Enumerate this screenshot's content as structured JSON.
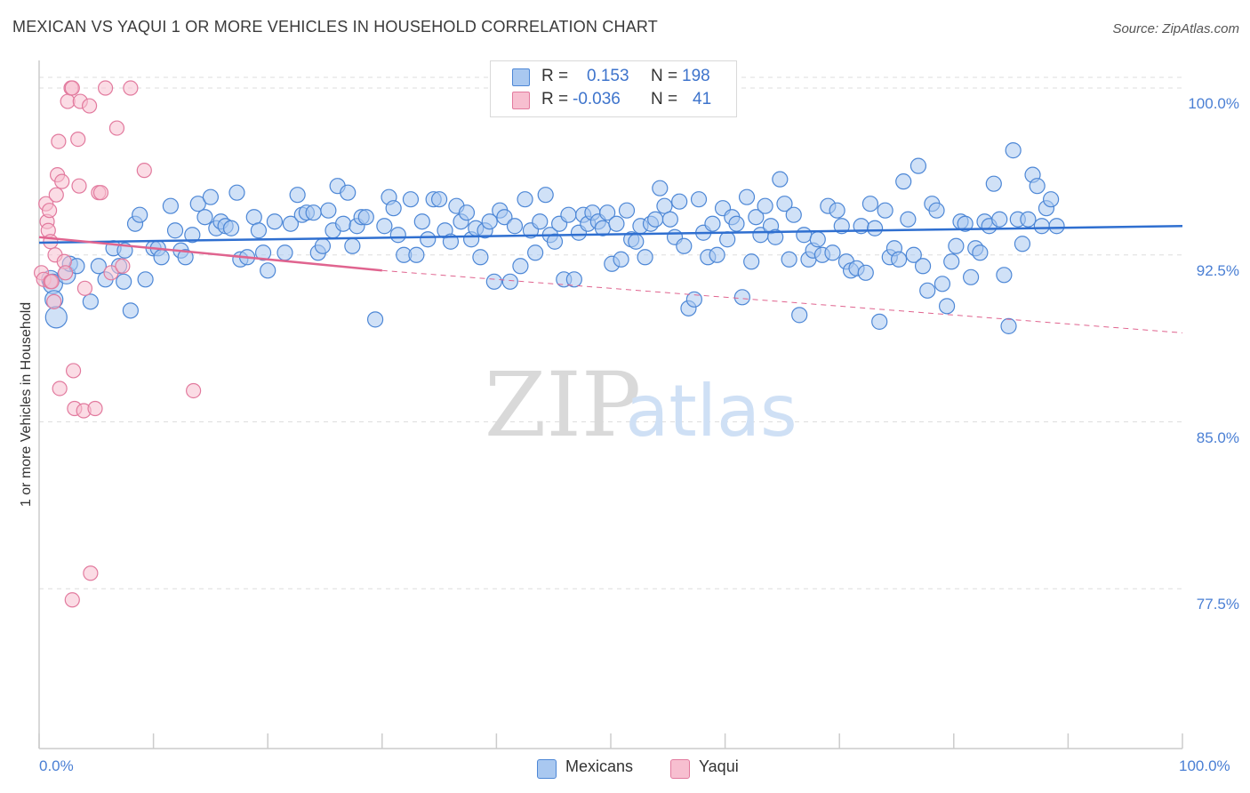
{
  "header": {
    "title": "MEXICAN VS YAQUI 1 OR MORE VEHICLES IN HOUSEHOLD CORRELATION CHART",
    "source": "Source: ZipAtlas.com"
  },
  "legend": {
    "rows": [
      {
        "r_label": "R =",
        "r_value": "0.153",
        "n_label": "N =",
        "n_value": "198"
      },
      {
        "r_label": "R =",
        "r_value": "-0.036",
        "n_label": "N =",
        "n_value": "41"
      }
    ]
  },
  "bottom_legend": {
    "mexicans": "Mexicans",
    "yaqui": "Yaqui"
  },
  "watermark": {
    "zip": "ZIP",
    "atlas": "atlas"
  },
  "colors": {
    "mexicans_fill": "#a9c8f0",
    "mexicans_stroke": "#4d87d6",
    "mexicans_line": "#2f6fd0",
    "yaqui_fill": "#f7bfd0",
    "yaqui_stroke": "#e27a9e",
    "yaqui_line": "#e0648f",
    "grid": "#dedede",
    "tick_text": "#4a7fd4"
  },
  "chart_data": {
    "type": "scatter",
    "title": "MEXICAN VS YAQUI 1 OR MORE VEHICLES IN HOUSEHOLD CORRELATION CHART",
    "xlabel": "",
    "ylabel": "1 or more Vehicles in Household",
    "xlim": [
      0,
      100
    ],
    "ylim": [
      70.0,
      100.8
    ],
    "x_tick_labels": [
      "0.0%",
      "100.0%"
    ],
    "y_ticks": [
      77.5,
      85.0,
      92.5,
      100.0
    ],
    "y_tick_labels": [
      "77.5%",
      "85.0%",
      "92.5%",
      "100.0%"
    ],
    "grid": true,
    "series": [
      {
        "name": "Mexicans",
        "r": 0.153,
        "n": 198,
        "trend": {
          "x": [
            0,
            100
          ],
          "y": [
            93.05,
            93.8
          ]
        },
        "points": [
          [
            1.0,
            91.4
          ],
          [
            1.2,
            91.2
          ],
          [
            1.3,
            90.5
          ],
          [
            1.5,
            89.7
          ],
          [
            2.4,
            91.6
          ],
          [
            2.7,
            92.1
          ],
          [
            3.3,
            92.0
          ],
          [
            4.5,
            90.4
          ],
          [
            5.2,
            92.0
          ],
          [
            5.8,
            91.4
          ],
          [
            6.5,
            92.8
          ],
          [
            7.0,
            92.0
          ],
          [
            7.4,
            91.3
          ],
          [
            7.5,
            92.7
          ],
          [
            8.0,
            90.0
          ],
          [
            8.4,
            93.9
          ],
          [
            8.8,
            94.3
          ],
          [
            9.3,
            91.4
          ],
          [
            10.0,
            92.8
          ],
          [
            10.4,
            92.8
          ],
          [
            10.7,
            92.4
          ],
          [
            11.5,
            94.7
          ],
          [
            11.9,
            93.6
          ],
          [
            12.4,
            92.7
          ],
          [
            12.8,
            92.4
          ],
          [
            13.4,
            93.4
          ],
          [
            13.9,
            94.8
          ],
          [
            14.5,
            94.2
          ],
          [
            15.0,
            95.1
          ],
          [
            15.5,
            93.7
          ],
          [
            15.9,
            94.0
          ],
          [
            16.3,
            93.8
          ],
          [
            16.8,
            93.7
          ],
          [
            17.3,
            95.3
          ],
          [
            17.6,
            92.3
          ],
          [
            18.2,
            92.4
          ],
          [
            18.8,
            94.2
          ],
          [
            19.2,
            93.6
          ],
          [
            19.6,
            92.6
          ],
          [
            20.0,
            91.8
          ],
          [
            20.6,
            94.0
          ],
          [
            21.5,
            92.6
          ],
          [
            22.0,
            93.9
          ],
          [
            22.6,
            95.2
          ],
          [
            23.0,
            94.3
          ],
          [
            23.4,
            94.4
          ],
          [
            24.0,
            94.4
          ],
          [
            24.4,
            92.6
          ],
          [
            24.8,
            92.9
          ],
          [
            25.3,
            94.5
          ],
          [
            25.7,
            93.6
          ],
          [
            26.1,
            95.6
          ],
          [
            26.6,
            93.9
          ],
          [
            27.0,
            95.3
          ],
          [
            27.4,
            92.9
          ],
          [
            27.8,
            93.8
          ],
          [
            28.2,
            94.2
          ],
          [
            28.6,
            94.2
          ],
          [
            29.4,
            89.6
          ],
          [
            30.2,
            93.8
          ],
          [
            30.6,
            95.1
          ],
          [
            31.0,
            94.6
          ],
          [
            31.4,
            93.4
          ],
          [
            31.9,
            92.5
          ],
          [
            32.5,
            95.0
          ],
          [
            33.0,
            92.5
          ],
          [
            33.5,
            94.0
          ],
          [
            34.0,
            93.2
          ],
          [
            34.5,
            95.0
          ],
          [
            35.0,
            95.0
          ],
          [
            35.5,
            93.6
          ],
          [
            36.0,
            93.1
          ],
          [
            36.5,
            94.7
          ],
          [
            36.9,
            94.0
          ],
          [
            37.4,
            94.4
          ],
          [
            37.8,
            93.2
          ],
          [
            38.2,
            93.7
          ],
          [
            38.6,
            92.4
          ],
          [
            39.0,
            93.6
          ],
          [
            39.4,
            94.0
          ],
          [
            39.8,
            91.3
          ],
          [
            40.3,
            94.5
          ],
          [
            40.7,
            94.2
          ],
          [
            41.2,
            91.3
          ],
          [
            41.6,
            93.8
          ],
          [
            42.1,
            92.0
          ],
          [
            42.5,
            95.0
          ],
          [
            43.0,
            93.6
          ],
          [
            43.4,
            92.6
          ],
          [
            43.8,
            94.0
          ],
          [
            44.3,
            95.2
          ],
          [
            44.7,
            93.4
          ],
          [
            45.1,
            93.1
          ],
          [
            45.5,
            93.9
          ],
          [
            45.9,
            91.4
          ],
          [
            46.3,
            94.3
          ],
          [
            46.8,
            91.4
          ],
          [
            47.2,
            93.5
          ],
          [
            47.6,
            94.3
          ],
          [
            48.0,
            93.9
          ],
          [
            48.4,
            94.4
          ],
          [
            48.9,
            94.0
          ],
          [
            49.3,
            93.7
          ],
          [
            49.7,
            94.4
          ],
          [
            50.1,
            92.1
          ],
          [
            50.5,
            93.9
          ],
          [
            50.9,
            92.3
          ],
          [
            51.4,
            94.5
          ],
          [
            51.8,
            93.2
          ],
          [
            52.2,
            93.1
          ],
          [
            52.6,
            93.8
          ],
          [
            53.0,
            92.4
          ],
          [
            53.5,
            93.9
          ],
          [
            53.9,
            94.1
          ],
          [
            54.3,
            95.5
          ],
          [
            54.7,
            94.7
          ],
          [
            55.2,
            94.1
          ],
          [
            55.6,
            93.3
          ],
          [
            56.0,
            94.9
          ],
          [
            56.4,
            92.9
          ],
          [
            56.8,
            90.1
          ],
          [
            57.3,
            90.5
          ],
          [
            57.7,
            95.0
          ],
          [
            58.1,
            93.5
          ],
          [
            58.5,
            92.4
          ],
          [
            58.9,
            93.9
          ],
          [
            59.3,
            92.5
          ],
          [
            59.8,
            94.6
          ],
          [
            60.2,
            93.2
          ],
          [
            60.6,
            94.2
          ],
          [
            61.0,
            93.9
          ],
          [
            61.5,
            90.6
          ],
          [
            61.9,
            95.1
          ],
          [
            62.3,
            92.2
          ],
          [
            62.7,
            94.2
          ],
          [
            63.1,
            93.4
          ],
          [
            63.5,
            94.7
          ],
          [
            64.0,
            93.8
          ],
          [
            64.4,
            93.3
          ],
          [
            64.8,
            95.9
          ],
          [
            65.2,
            94.8
          ],
          [
            65.6,
            92.3
          ],
          [
            66.0,
            94.3
          ],
          [
            66.5,
            89.8
          ],
          [
            66.9,
            93.4
          ],
          [
            67.3,
            92.3
          ],
          [
            67.7,
            92.7
          ],
          [
            68.1,
            93.2
          ],
          [
            68.5,
            92.5
          ],
          [
            69.0,
            94.7
          ],
          [
            69.4,
            92.6
          ],
          [
            69.8,
            94.5
          ],
          [
            70.2,
            93.8
          ],
          [
            70.6,
            92.2
          ],
          [
            71.0,
            91.8
          ],
          [
            71.5,
            91.9
          ],
          [
            71.9,
            93.8
          ],
          [
            72.3,
            91.7
          ],
          [
            72.7,
            94.8
          ],
          [
            73.1,
            93.7
          ],
          [
            73.5,
            89.5
          ],
          [
            74.0,
            94.5
          ],
          [
            74.4,
            92.4
          ],
          [
            74.8,
            92.8
          ],
          [
            75.2,
            92.3
          ],
          [
            75.6,
            95.8
          ],
          [
            76.0,
            94.1
          ],
          [
            76.5,
            92.5
          ],
          [
            76.9,
            96.5
          ],
          [
            77.3,
            92.0
          ],
          [
            77.7,
            90.9
          ],
          [
            78.1,
            94.8
          ],
          [
            78.5,
            94.5
          ],
          [
            79.0,
            91.2
          ],
          [
            79.4,
            90.2
          ],
          [
            79.8,
            92.2
          ],
          [
            80.2,
            92.9
          ],
          [
            80.6,
            94.0
          ],
          [
            81.0,
            93.9
          ],
          [
            81.5,
            91.5
          ],
          [
            81.9,
            92.8
          ],
          [
            82.3,
            92.6
          ],
          [
            82.7,
            94.0
          ],
          [
            83.1,
            93.8
          ],
          [
            83.5,
            95.7
          ],
          [
            84.0,
            94.1
          ],
          [
            84.4,
            91.6
          ],
          [
            84.8,
            89.3
          ],
          [
            85.2,
            97.2
          ],
          [
            85.6,
            94.1
          ],
          [
            86.0,
            93.0
          ],
          [
            86.5,
            94.1
          ],
          [
            86.9,
            96.1
          ],
          [
            87.3,
            95.6
          ],
          [
            87.7,
            93.8
          ],
          [
            88.1,
            94.6
          ],
          [
            88.5,
            95.0
          ],
          [
            89.0,
            93.8
          ]
        ]
      },
      {
        "name": "Yaqui",
        "r": -0.036,
        "n": 41,
        "trend": {
          "x": [
            0,
            30
          ],
          "y": [
            93.3,
            91.8
          ]
        },
        "trend_extended": {
          "x": [
            30,
            100
          ],
          "y": [
            91.8,
            89.0
          ]
        },
        "points": [
          [
            0.2,
            91.7
          ],
          [
            0.4,
            91.4
          ],
          [
            0.6,
            94.8
          ],
          [
            0.7,
            94.0
          ],
          [
            0.8,
            93.6
          ],
          [
            0.9,
            94.5
          ],
          [
            1.0,
            93.1
          ],
          [
            1.0,
            91.3
          ],
          [
            1.1,
            91.3
          ],
          [
            1.3,
            90.4
          ],
          [
            1.4,
            92.5
          ],
          [
            1.5,
            95.2
          ],
          [
            1.6,
            96.1
          ],
          [
            1.7,
            97.6
          ],
          [
            1.8,
            86.5
          ],
          [
            2.0,
            95.8
          ],
          [
            2.2,
            92.2
          ],
          [
            2.3,
            91.7
          ],
          [
            2.5,
            99.4
          ],
          [
            2.8,
            100.0
          ],
          [
            2.9,
            77.0
          ],
          [
            2.9,
            100.0
          ],
          [
            3.0,
            87.3
          ],
          [
            3.1,
            85.6
          ],
          [
            3.4,
            97.7
          ],
          [
            3.5,
            95.6
          ],
          [
            3.6,
            99.4
          ],
          [
            3.9,
            85.5
          ],
          [
            4.0,
            91.0
          ],
          [
            4.4,
            99.2
          ],
          [
            4.5,
            78.2
          ],
          [
            4.9,
            85.6
          ],
          [
            5.2,
            95.3
          ],
          [
            5.4,
            95.3
          ],
          [
            5.8,
            100.0
          ],
          [
            6.3,
            91.7
          ],
          [
            6.8,
            98.2
          ],
          [
            7.3,
            92.0
          ],
          [
            8.0,
            100.0
          ],
          [
            9.2,
            96.3
          ],
          [
            13.5,
            86.4
          ]
        ]
      }
    ]
  }
}
